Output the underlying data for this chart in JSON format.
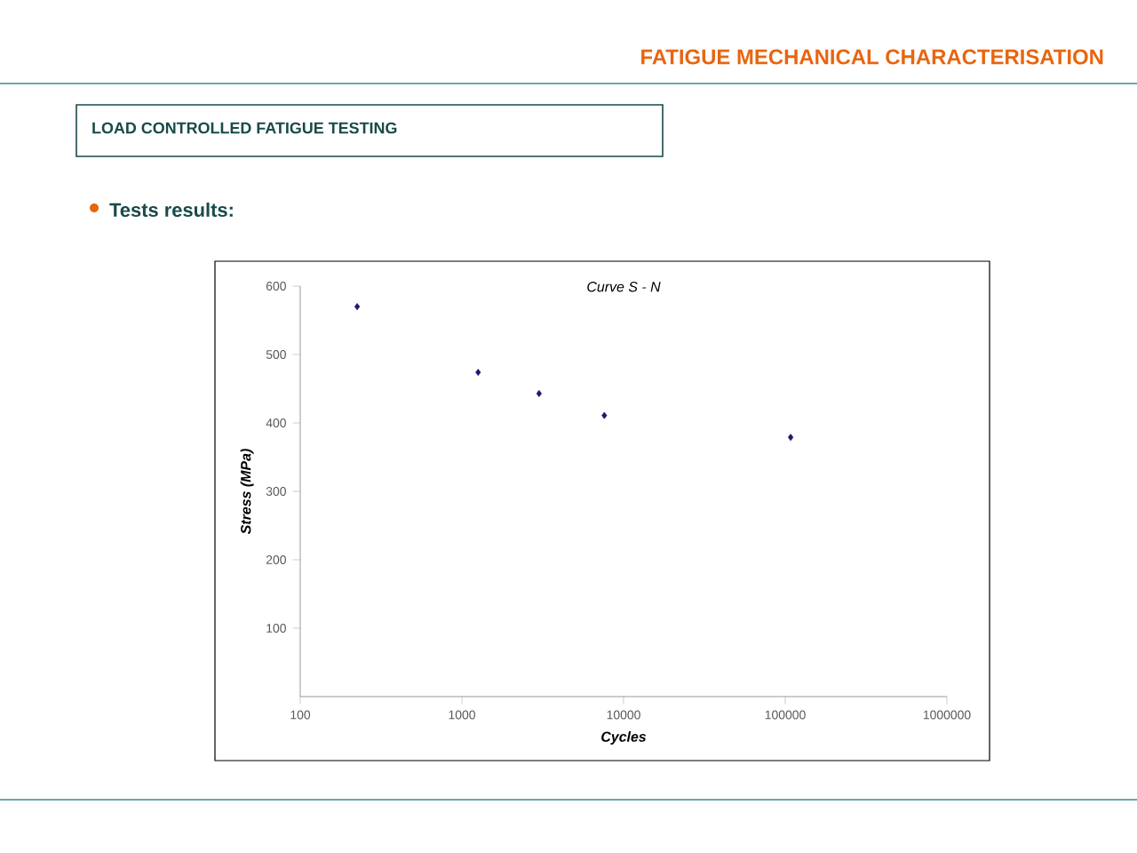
{
  "chart_data": {
    "type": "scatter",
    "title": "FATIGUE MECHANICAL CHARACTERISATION",
    "subtitle": "LOAD CONTROLLED FATIGUE TESTING",
    "annotations": [
      "Tests results:",
      "Curve S - N"
    ],
    "xlabel": "Cycles",
    "ylabel": "Stress (MPa)",
    "x": [
      225,
      1260,
      3000,
      7600,
      108000
    ],
    "values": [
      570,
      474,
      443,
      411,
      379
    ],
    "color": "#1a1a6e",
    "marker": "diamond",
    "log": "x",
    "xlim": [
      100,
      1000000
    ],
    "xticks": [
      100,
      1000,
      10000,
      100000,
      1000000
    ],
    "ylim": [
      0,
      600
    ],
    "yticks": [
      100,
      200,
      300,
      400,
      500,
      600
    ]
  }
}
